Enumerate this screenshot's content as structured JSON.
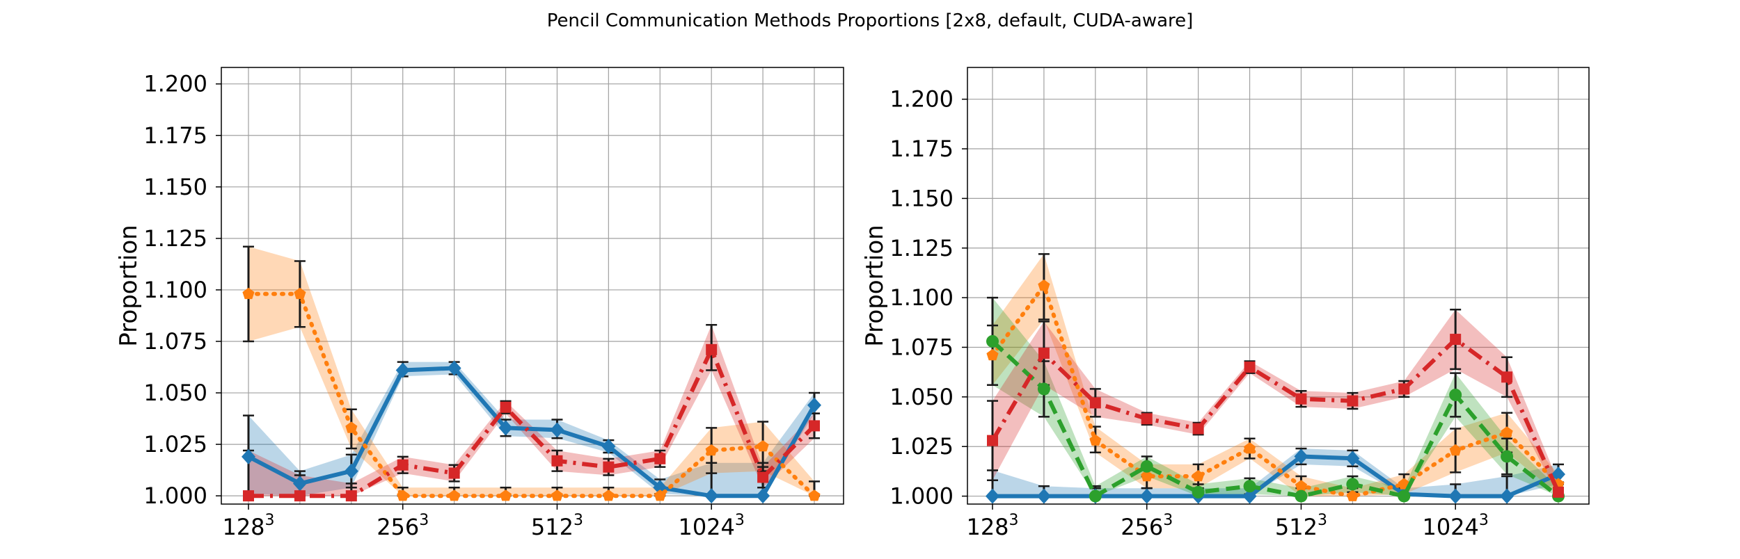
{
  "figure": {
    "title": "Pencil Communication Methods Proportions [2x8, default, CUDA-aware]"
  },
  "chart_data": [
    {
      "type": "line",
      "ylabel": "Proportion",
      "xlabel": "",
      "ylim": [
        0.996,
        1.208
      ],
      "yticks": [
        "1.000",
        "1.025",
        "1.050",
        "1.075",
        "1.100",
        "1.125",
        "1.150",
        "1.175",
        "1.200"
      ],
      "xticks": [
        "128",
        "256",
        "512",
        "1024"
      ],
      "xtick_exponent": "3",
      "xtick_positions": [
        0,
        3,
        6,
        9
      ],
      "x": [
        0,
        1,
        2,
        3,
        4,
        5,
        6,
        7,
        8,
        9,
        10,
        11
      ],
      "grid": true,
      "series": [
        {
          "color": "#1f77b4",
          "dash": "solid",
          "marker": "diamond",
          "values": [
            1.019,
            1.006,
            1.012,
            1.061,
            1.062,
            1.033,
            1.032,
            1.024,
            1.004,
            1.0,
            1.0,
            1.044
          ],
          "lower": [
            1.001,
            1.0,
            1.004,
            1.058,
            1.059,
            1.029,
            1.028,
            1.021,
            1.001,
            1.0,
            1.0,
            1.04
          ],
          "upper": [
            1.039,
            1.012,
            1.02,
            1.065,
            1.065,
            1.037,
            1.037,
            1.027,
            1.008,
            1.016,
            1.016,
            1.05
          ]
        },
        {
          "color": "#ff7f0e",
          "dash": "dotted",
          "marker": "pentagon",
          "values": [
            1.098,
            1.098,
            1.033,
            1.0,
            1.0,
            1.0,
            1.0,
            1.0,
            1.0,
            1.022,
            1.024,
            1.0
          ],
          "lower": [
            1.075,
            1.082,
            1.023,
            1.0,
            1.0,
            1.0,
            1.0,
            1.0,
            1.0,
            1.011,
            1.012,
            1.0
          ],
          "upper": [
            1.121,
            1.114,
            1.042,
            1.004,
            1.004,
            1.004,
            1.004,
            1.004,
            1.004,
            1.033,
            1.036,
            1.007
          ]
        },
        {
          "color": "#d62728",
          "dash": "dashdot",
          "marker": "square",
          "values": [
            1.0,
            1.0,
            1.0,
            1.015,
            1.011,
            1.043,
            1.017,
            1.014,
            1.018,
            1.071,
            1.009,
            1.034
          ],
          "lower": [
            1.0,
            1.0,
            1.0,
            1.011,
            1.007,
            1.04,
            1.012,
            1.01,
            1.014,
            1.061,
            1.004,
            1.028
          ],
          "upper": [
            1.022,
            1.01,
            1.006,
            1.019,
            1.015,
            1.046,
            1.022,
            1.018,
            1.022,
            1.083,
            1.014,
            1.04
          ]
        }
      ]
    },
    {
      "type": "line",
      "ylabel": "Proportion",
      "xlabel": "",
      "ylim": [
        0.996,
        1.216
      ],
      "yticks": [
        "1.000",
        "1.025",
        "1.050",
        "1.075",
        "1.100",
        "1.125",
        "1.150",
        "1.175",
        "1.200"
      ],
      "xticks": [
        "128",
        "512",
        "1024"
      ],
      "xticks_full": [
        "128",
        "256",
        "512",
        "1024"
      ],
      "xtick_exponent": "3",
      "xtick_positions": [
        0,
        3,
        6,
        9
      ],
      "x": [
        0,
        1,
        2,
        3,
        4,
        5,
        6,
        7,
        8,
        9,
        10,
        11
      ],
      "grid": true,
      "series": [
        {
          "color": "#1f77b4",
          "dash": "solid",
          "marker": "diamond",
          "values": [
            1.0,
            1.0,
            1.0,
            1.0,
            1.0,
            1.0,
            1.02,
            1.019,
            1.001,
            1.0,
            1.0,
            1.011
          ],
          "lower": [
            1.0,
            1.0,
            1.0,
            1.0,
            1.0,
            1.0,
            1.016,
            1.015,
            1.0,
            1.0,
            1.0,
            1.006
          ],
          "upper": [
            1.013,
            1.005,
            1.004,
            1.004,
            1.004,
            1.004,
            1.024,
            1.023,
            1.004,
            1.006,
            1.01,
            1.016
          ]
        },
        {
          "color": "#ff7f0e",
          "dash": "dotted",
          "marker": "pentagon",
          "values": [
            1.071,
            1.106,
            1.028,
            1.01,
            1.01,
            1.024,
            1.005,
            1.0,
            1.006,
            1.023,
            1.032,
            1.006
          ],
          "lower": [
            1.056,
            1.089,
            1.022,
            1.004,
            1.004,
            1.019,
            1.0,
            1.0,
            1.001,
            1.012,
            1.022,
            1.001
          ],
          "upper": [
            1.086,
            1.122,
            1.035,
            1.016,
            1.016,
            1.029,
            1.01,
            1.004,
            1.011,
            1.034,
            1.042,
            1.011
          ]
        },
        {
          "color": "#2ca02c",
          "dash": "dashed",
          "marker": "circle",
          "values": [
            1.078,
            1.054,
            1.0,
            1.015,
            1.002,
            1.005,
            1.0,
            1.006,
            1.0,
            1.051,
            1.02,
            1.0
          ],
          "lower": [
            1.056,
            1.04,
            1.0,
            1.01,
            1.0,
            1.001,
            1.0,
            1.002,
            1.0,
            1.04,
            1.011,
            1.0
          ],
          "upper": [
            1.1,
            1.068,
            1.005,
            1.02,
            1.006,
            1.009,
            1.004,
            1.01,
            1.004,
            1.062,
            1.029,
            1.004
          ]
        },
        {
          "color": "#d62728",
          "dash": "dashdot",
          "marker": "square",
          "values": [
            1.028,
            1.072,
            1.047,
            1.039,
            1.034,
            1.065,
            1.049,
            1.048,
            1.054,
            1.079,
            1.06,
            1.002
          ],
          "lower": [
            1.008,
            1.056,
            1.04,
            1.036,
            1.031,
            1.062,
            1.045,
            1.044,
            1.05,
            1.064,
            1.05,
            1.0
          ],
          "upper": [
            1.048,
            1.088,
            1.054,
            1.042,
            1.037,
            1.068,
            1.053,
            1.052,
            1.058,
            1.094,
            1.07,
            1.007
          ]
        }
      ]
    }
  ]
}
